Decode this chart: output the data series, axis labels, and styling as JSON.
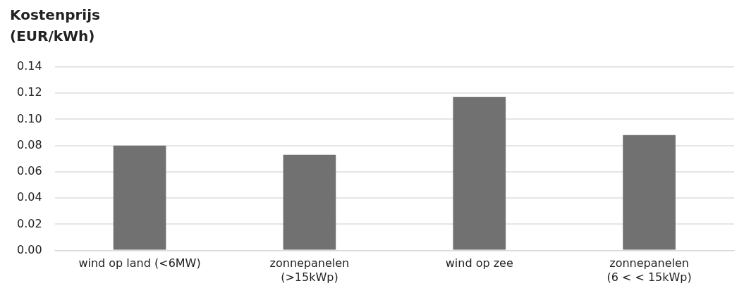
{
  "chart_data": {
    "type": "bar",
    "ylabel": "Kostenprijs (EUR/kWh)",
    "categories": [
      "wind op land (<6MW)",
      "zonnepanelen (>15kWp)",
      "wind op zee",
      "zonnepanelen (6 < < 15kWp)"
    ],
    "values": [
      0.08,
      0.073,
      0.117,
      0.088
    ],
    "color": "#717171",
    "ylim": [
      0,
      0.14
    ],
    "yticks": [
      {
        "value": 0,
        "label": "0.00"
      },
      {
        "value": 0.02,
        "label": "0.02"
      },
      {
        "value": 0.04,
        "label": "0.04"
      },
      {
        "value": 0.06,
        "label": "0.06"
      },
      {
        "value": 0.08,
        "label": "0.08"
      },
      {
        "value": 0.1,
        "label": "0.10"
      },
      {
        "value": 0.12,
        "label": "0.12"
      },
      {
        "value": 0.14,
        "label": "0.14"
      }
    ],
    "grid": "y",
    "legend": false
  }
}
